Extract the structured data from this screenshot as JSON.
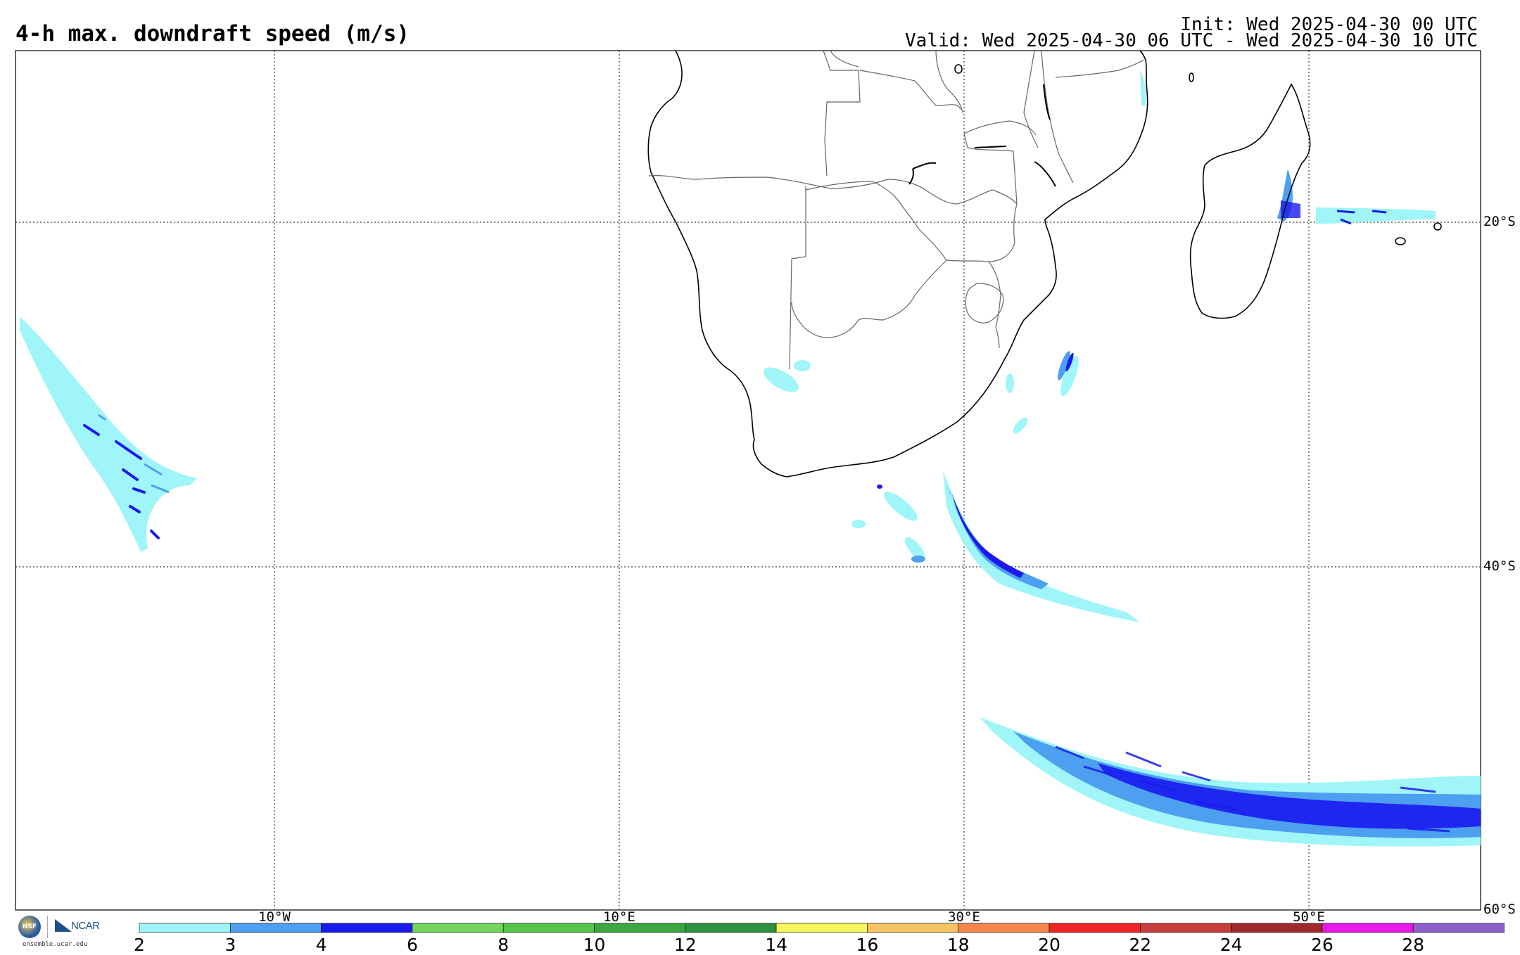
{
  "header": {
    "title": "4-h max. downdraft speed (m/s)",
    "init": "Init: Wed 2025-04-30 00 UTC",
    "valid": "Valid: Wed 2025-04-30 06 UTC - Wed 2025-04-30 10 UTC"
  },
  "map": {
    "lat_labels": [
      "20°S",
      "40°S",
      "60°S"
    ],
    "lon_labels": [
      "10°W",
      "10°E",
      "30°E",
      "50°E"
    ],
    "features": [
      "Southern Africa",
      "Madagascar",
      "Lesotho",
      "Eswatini"
    ]
  },
  "logos": {
    "nsf": "NSF",
    "ncar": "NCAR",
    "url": "ensemble.ucar.edu"
  },
  "colorbar": {
    "ticks": [
      "2",
      "3",
      "4",
      "6",
      "8",
      "10",
      "12",
      "14",
      "16",
      "18",
      "20",
      "22",
      "24",
      "26",
      "28"
    ],
    "colors": [
      "#9ff5f7",
      "#4d9ff0",
      "#1a1af0",
      "#72d65c",
      "#56c44a",
      "#3aa83e",
      "#2e9142",
      "#f5f55c",
      "#f7c464",
      "#f5874c",
      "#f02424",
      "#c83c3c",
      "#a02a2a",
      "#e619e6",
      "#8e5fc8"
    ]
  }
}
